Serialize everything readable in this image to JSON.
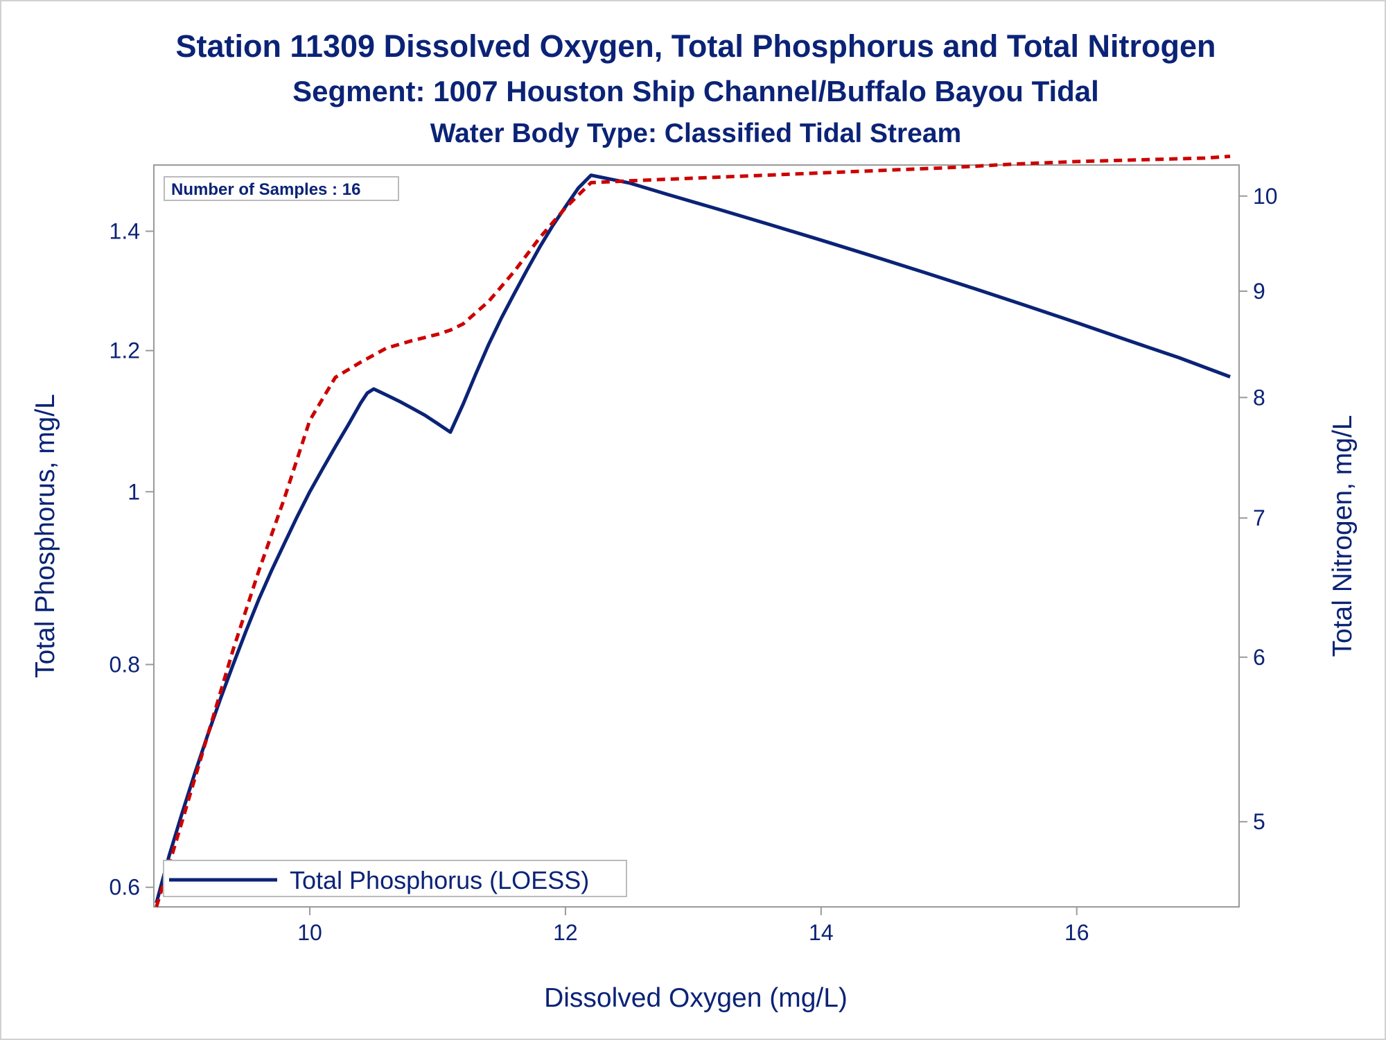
{
  "titles": {
    "line1": "Station 11309  Dissolved Oxygen, Total Phosphorus and Total Nitrogen",
    "line2": "Segment: 1007  Houston Ship Channel/Buffalo Bayou Tidal",
    "line3": "Water Body Type: Classified Tidal Stream"
  },
  "inset": {
    "text": "Number of Samples : 16"
  },
  "legend": {
    "label": "Total Phosphorus (LOESS)"
  },
  "colors": {
    "text": "#0b2376",
    "phosphorus": "#0b2376",
    "nitrogen": "#cc0000",
    "frame": "#9a9a9a"
  },
  "chart_data": {
    "type": "line",
    "xlabel": "Dissolved Oxygen (mg/L)",
    "ylabel": "Total Phosphorus, mg/L",
    "y2label": "Total Nitrogen, mg/L",
    "xlim": [
      8.78,
      17.27
    ],
    "ylim": [
      0.585,
      1.525
    ],
    "y2lim": [
      4.55,
      10.35
    ],
    "y_scale": "log",
    "y2_scale": "log",
    "xticks": [
      10,
      12,
      14,
      16
    ],
    "yticks": [
      0.6,
      0.8,
      1,
      1.2,
      1.4
    ],
    "ytick_labels": [
      "0.6",
      "0.8",
      "1",
      "1.2",
      "1.4"
    ],
    "y2ticks": [
      5,
      6,
      7,
      8,
      9,
      10
    ],
    "grid": false,
    "legend_position": "bottom-left",
    "series": [
      {
        "name": "Total Phosphorus (LOESS)",
        "axis": "left",
        "style": "solid",
        "x": [
          8.8,
          8.9,
          9.0,
          9.1,
          9.2,
          9.3,
          9.4,
          9.5,
          9.6,
          9.7,
          9.8,
          9.9,
          10.0,
          10.1,
          10.2,
          10.3,
          10.4,
          10.45,
          10.5,
          10.6,
          10.7,
          10.8,
          10.9,
          11.0,
          11.1,
          11.2,
          11.3,
          11.4,
          11.5,
          11.6,
          11.7,
          11.8,
          11.9,
          12.0,
          12.1,
          12.2,
          12.3,
          12.5,
          12.8,
          13.2,
          13.6,
          14.0,
          14.4,
          14.8,
          15.2,
          15.6,
          16.0,
          16.4,
          16.8,
          17.2
        ],
        "y": [
          0.588,
          0.625,
          0.66,
          0.695,
          0.73,
          0.765,
          0.8,
          0.835,
          0.87,
          0.903,
          0.935,
          0.968,
          1.0,
          1.03,
          1.06,
          1.09,
          1.122,
          1.136,
          1.142,
          1.133,
          1.124,
          1.114,
          1.104,
          1.092,
          1.08,
          1.12,
          1.165,
          1.21,
          1.252,
          1.292,
          1.332,
          1.372,
          1.41,
          1.445,
          1.48,
          1.505,
          1.5,
          1.49,
          1.468,
          1.44,
          1.412,
          1.384,
          1.356,
          1.328,
          1.3,
          1.272,
          1.244,
          1.216,
          1.189,
          1.16
        ]
      },
      {
        "axis": "right",
        "style": "dashed",
        "x": [
          8.8,
          9.0,
          9.2,
          9.4,
          9.6,
          9.8,
          10.0,
          10.2,
          10.4,
          10.6,
          10.8,
          11.0,
          11.1,
          11.2,
          11.4,
          11.6,
          11.8,
          12.0,
          12.2,
          12.5,
          13.0,
          13.5,
          14.0,
          14.5,
          15.0,
          15.5,
          16.0,
          16.5,
          17.0,
          17.2
        ],
        "y": [
          4.55,
          5.0,
          5.5,
          6.05,
          6.6,
          7.15,
          7.8,
          8.18,
          8.32,
          8.45,
          8.52,
          8.58,
          8.62,
          8.68,
          8.9,
          9.2,
          9.55,
          9.87,
          10.15,
          10.17,
          10.2,
          10.23,
          10.26,
          10.29,
          10.32,
          10.36,
          10.39,
          10.41,
          10.43,
          10.45
        ]
      }
    ]
  }
}
